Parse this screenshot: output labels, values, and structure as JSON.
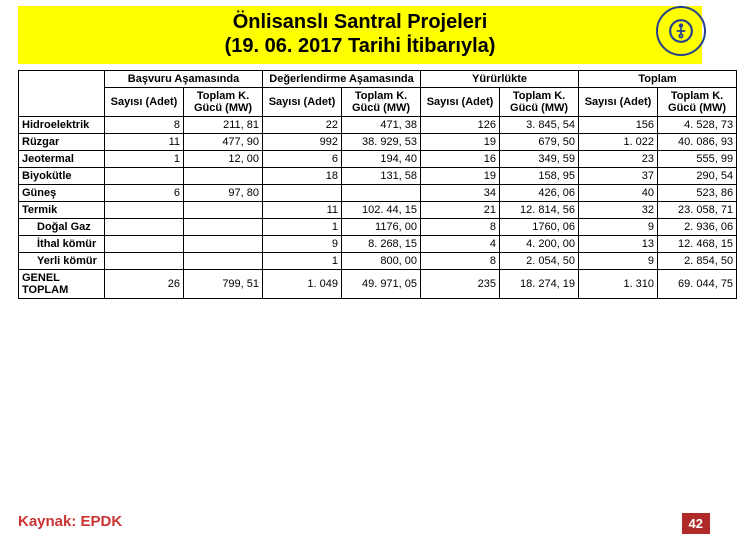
{
  "title": {
    "line1": "Önlisanslı Santral Projeleri",
    "line2": "(19. 06. 2017 Tarihi İtibarıyla)"
  },
  "table": {
    "groups": [
      "Başvuru Aşamasında",
      "Değerlendirme Aşamasında",
      "Yürürlükte",
      "Toplam"
    ],
    "sub": [
      "Sayısı (Adet)",
      "Toplam K. Gücü (MW)",
      "Toplam K. Gücü (MW)"
    ],
    "rows": [
      {
        "label": "Hidroelektrik",
        "indent": false,
        "cells": [
          "8",
          "211, 81",
          "22",
          "471, 38",
          "126",
          "3. 845, 54",
          "156",
          "4. 528, 73"
        ]
      },
      {
        "label": "Rüzgar",
        "indent": false,
        "cells": [
          "11",
          "477, 90",
          "992",
          "38. 929, 53",
          "19",
          "679, 50",
          "1. 022",
          "40. 086, 93"
        ]
      },
      {
        "label": "Jeotermal",
        "indent": false,
        "cells": [
          "1",
          "12, 00",
          "6",
          "194, 40",
          "16",
          "349, 59",
          "23",
          "555, 99"
        ]
      },
      {
        "label": "Biyokütle",
        "indent": false,
        "cells": [
          "",
          "",
          "18",
          "131, 58",
          "19",
          "158, 95",
          "37",
          "290, 54"
        ]
      },
      {
        "label": "Güneş",
        "indent": false,
        "cells": [
          "6",
          "97, 80",
          "",
          "",
          "34",
          "426, 06",
          "40",
          "523, 86"
        ]
      },
      {
        "label": "Termik",
        "indent": false,
        "cells": [
          "",
          "",
          "11",
          "102. 44, 15",
          "21",
          "12. 814, 56",
          "32",
          "23. 058, 71"
        ]
      },
      {
        "label": "Doğal Gaz",
        "indent": true,
        "cells": [
          "",
          "",
          "1",
          "1176, 00",
          "8",
          "1760, 06",
          "9",
          "2. 936, 06"
        ]
      },
      {
        "label": "İthal kömür",
        "indent": true,
        "cells": [
          "",
          "",
          "9",
          "8. 268, 15",
          "4",
          "4. 200, 00",
          "13",
          "12. 468, 15"
        ]
      },
      {
        "label": "Yerli kömür",
        "indent": true,
        "cells": [
          "",
          "",
          "1",
          "800, 00",
          "8",
          "2. 054, 50",
          "9",
          "2. 854, 50"
        ]
      },
      {
        "label": "GENEL TOPLAM",
        "indent": false,
        "cells": [
          "26",
          "799, 51",
          "1. 049",
          "49. 971, 05",
          "235",
          "18. 274, 19",
          "1. 310",
          "69. 044, 75"
        ]
      }
    ]
  },
  "footer": {
    "source": "Kaynak: EPDK",
    "page": "42"
  },
  "style": {
    "title_bg": "#ffff00",
    "title_font_size": 20,
    "header_font_size": 11,
    "cell_font_size": 11,
    "border_color": "#000000",
    "source_color": "#cc3333",
    "page_bg": "#b02a2a",
    "page_fg": "#ffffff",
    "logo_color": "#25408f"
  }
}
